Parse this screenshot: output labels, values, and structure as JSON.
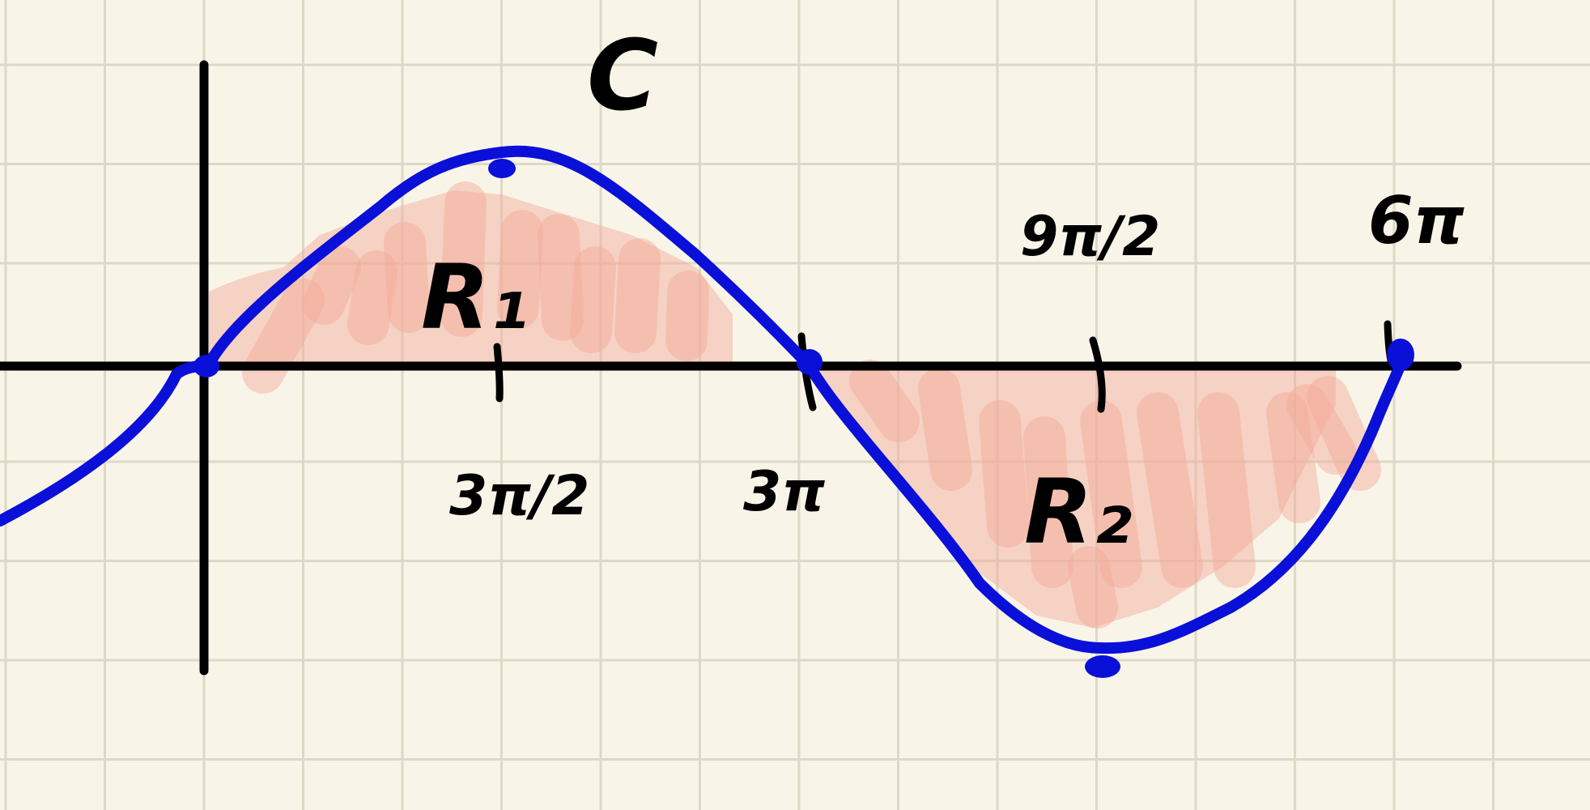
{
  "labels": {
    "curve_name": "C",
    "region_1": "R₁",
    "region_2": "R₂",
    "tick_3pi_over_2": "3π/2",
    "tick_3pi": "3π",
    "tick_9pi_over_2": "9π/2",
    "tick_6pi": "6π"
  },
  "colors": {
    "paper": "#f8f5e8",
    "grid": "#dcd9c6",
    "axes": "#000000",
    "curve": "#0a10d8",
    "shading": "#f4a898"
  },
  "chart_data": {
    "type": "line",
    "function": "sine curve over one full period",
    "x_ticks_marked": [
      "3π/2",
      "3π",
      "9π/2",
      "6π"
    ],
    "zeros": [
      "0",
      "3π",
      "6π"
    ],
    "maximum_at": "3π/2",
    "minimum_at": "9π/2",
    "regions": [
      {
        "name": "R₁",
        "between": [
          "0",
          "3π"
        ],
        "side": "above x-axis"
      },
      {
        "name": "R₂",
        "between": [
          "3π",
          "6π"
        ],
        "side": "below x-axis"
      }
    ],
    "grid": true
  }
}
